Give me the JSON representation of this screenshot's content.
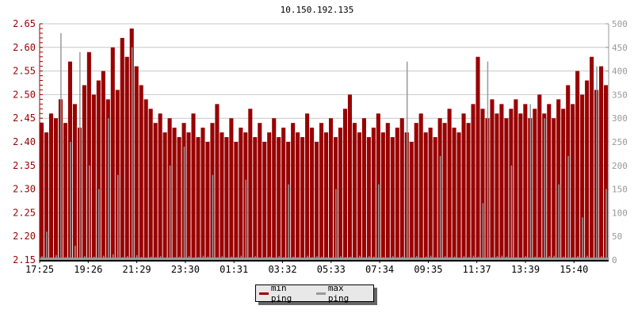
{
  "chart_data": {
    "type": "bar",
    "title": "10.150.192.135",
    "x_tick_labels": [
      "17:25",
      "19:26",
      "21:29",
      "23:30",
      "01:31",
      "03:32",
      "05:33",
      "07:34",
      "09:35",
      "11:37",
      "13:39",
      "15:40"
    ],
    "y_left": {
      "ylim": [
        2.15,
        2.65
      ],
      "ticks": [
        "2.15",
        "2.20",
        "2.25",
        "2.30",
        "2.35",
        "2.40",
        "2.45",
        "2.50",
        "2.55",
        "2.60",
        "2.65"
      ],
      "color": "#990000"
    },
    "y_right": {
      "ylim": [
        0,
        500
      ],
      "ticks": [
        "0",
        "50",
        "100",
        "150",
        "200",
        "250",
        "300",
        "350",
        "400",
        "450",
        "500"
      ],
      "color": "#999999"
    },
    "grid": true,
    "legend_position": "bottom",
    "series": [
      {
        "name": "min ping",
        "axis": "left",
        "color": "#990000",
        "values": [
          2.44,
          2.42,
          2.46,
          2.45,
          2.49,
          2.44,
          2.57,
          2.48,
          2.43,
          2.52,
          2.59,
          2.5,
          2.53,
          2.55,
          2.49,
          2.6,
          2.51,
          2.62,
          2.58,
          2.64,
          2.56,
          2.52,
          2.49,
          2.47,
          2.44,
          2.46,
          2.42,
          2.45,
          2.43,
          2.41,
          2.44,
          2.42,
          2.46,
          2.41,
          2.43,
          2.4,
          2.44,
          2.48,
          2.42,
          2.41,
          2.45,
          2.4,
          2.43,
          2.42,
          2.47,
          2.41,
          2.44,
          2.4,
          2.42,
          2.45,
          2.41,
          2.43,
          2.4,
          2.44,
          2.42,
          2.41,
          2.46,
          2.43,
          2.4,
          2.44,
          2.42,
          2.45,
          2.41,
          2.43,
          2.47,
          2.5,
          2.44,
          2.42,
          2.45,
          2.41,
          2.43,
          2.46,
          2.42,
          2.44,
          2.41,
          2.43,
          2.45,
          2.42,
          2.4,
          2.44,
          2.46,
          2.42,
          2.43,
          2.41,
          2.45,
          2.44,
          2.47,
          2.43,
          2.42,
          2.46,
          2.44,
          2.48,
          2.58,
          2.47,
          2.45,
          2.49,
          2.46,
          2.48,
          2.45,
          2.47,
          2.49,
          2.46,
          2.48,
          2.45,
          2.47,
          2.5,
          2.46,
          2.48,
          2.45,
          2.49,
          2.47,
          2.52,
          2.48,
          2.55,
          2.5,
          2.53,
          2.58,
          2.51,
          2.56,
          2.52
        ]
      },
      {
        "name": "max ping",
        "axis": "right",
        "color": "#999999",
        "values": [
          8,
          60,
          5,
          10,
          480,
          6,
          250,
          30,
          440,
          8,
          200,
          7,
          150,
          9,
          300,
          12,
          180,
          6,
          8,
          450,
          10,
          6,
          5,
          7,
          6,
          8,
          5,
          200,
          6,
          7,
          240,
          8,
          5,
          6,
          9,
          7,
          180,
          6,
          8,
          5,
          7,
          6,
          9,
          170,
          6,
          8,
          5,
          6,
          7,
          5,
          8,
          6,
          160,
          7,
          6,
          5,
          9,
          6,
          8,
          7,
          6,
          5,
          150,
          8,
          6,
          7,
          5,
          9,
          6,
          8,
          7,
          160,
          6,
          5,
          8,
          6,
          7,
          420,
          6,
          8,
          5,
          7,
          9,
          6,
          220,
          8,
          6,
          7,
          5,
          8,
          6,
          9,
          7,
          120,
          420,
          6,
          8,
          9,
          7,
          200,
          6,
          5,
          8,
          330,
          7,
          6,
          300,
          8,
          9,
          160,
          7,
          220,
          6,
          8,
          90,
          9,
          5,
          410,
          8,
          150
        ]
      }
    ]
  }
}
